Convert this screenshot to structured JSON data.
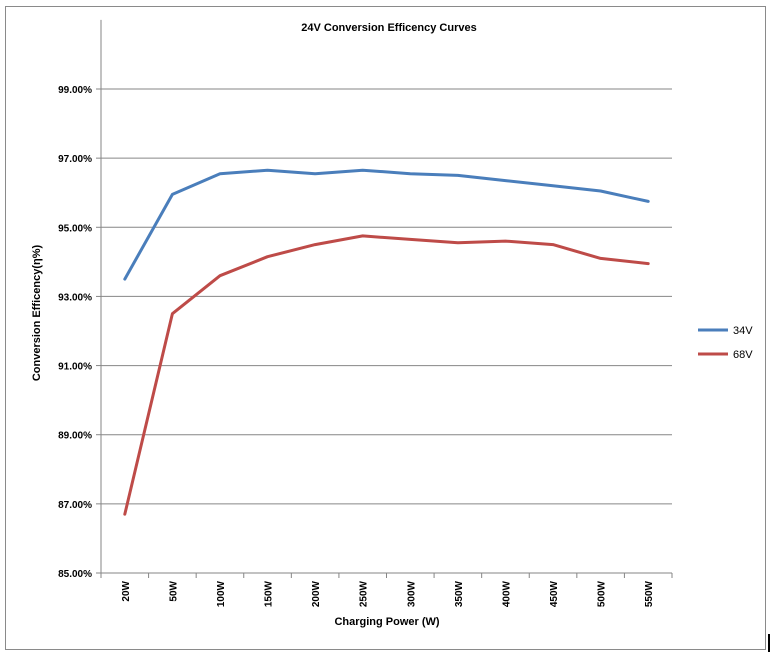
{
  "chart_data": {
    "type": "line",
    "title": "24V  Conversion Efficency Curves",
    "xlabel": "Charging  Power  (W)",
    "ylabel": "Conversion Efficency(η%)",
    "categories": [
      "20W",
      "50W",
      "100W",
      "150W",
      "200W",
      "250W",
      "300W",
      "350W",
      "400W",
      "450W",
      "500W",
      "550W"
    ],
    "ylim": [
      85,
      101
    ],
    "yticks": [
      85,
      87,
      89,
      91,
      93,
      95,
      97,
      99
    ],
    "ytick_labels": [
      "85.00%",
      "87.00%",
      "89.00%",
      "91.00%",
      "93.00%",
      "95.00%",
      "97.00%",
      "99.00%"
    ],
    "grid": "horizontal",
    "legend_position": "right",
    "series": [
      {
        "name": "34V",
        "color": "#4a7ebb",
        "values": [
          93.5,
          95.95,
          96.55,
          96.65,
          96.55,
          96.65,
          96.55,
          96.5,
          96.35,
          96.2,
          96.05,
          95.75
        ]
      },
      {
        "name": "68V",
        "color": "#be4b48",
        "values": [
          86.7,
          92.5,
          93.6,
          94.15,
          94.5,
          94.75,
          94.65,
          94.55,
          94.6,
          94.5,
          94.1,
          93.95
        ]
      }
    ]
  }
}
